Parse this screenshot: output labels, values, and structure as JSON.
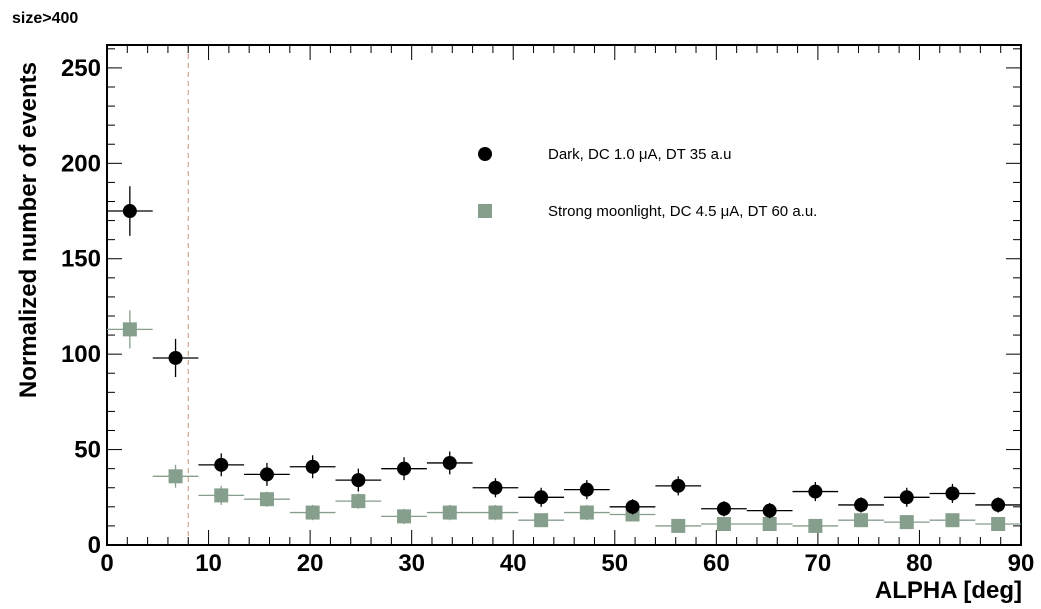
{
  "chart_data": {
    "type": "scatter",
    "title": "size>400",
    "xlabel": "ALPHA [deg]",
    "ylabel": "Normalized number of events",
    "xlim": [
      0,
      90
    ],
    "ylim": [
      0,
      262
    ],
    "x_ticks": [
      "0",
      "10",
      "20",
      "30",
      "40",
      "50",
      "60",
      "70",
      "80",
      "90"
    ],
    "y_ticks": [
      "0",
      "50",
      "100",
      "150",
      "200",
      "250"
    ],
    "cut_line_x": 8,
    "cut_line_color": "#c8947a",
    "grid": false,
    "legend_placement": "top-right",
    "series": [
      {
        "name": "Dark, DC 1.0 μA, DT 35 a.u",
        "marker": "circle",
        "color": "#000000",
        "x": [
          2.25,
          6.75,
          11.25,
          15.75,
          20.25,
          24.75,
          29.25,
          33.75,
          38.25,
          42.75,
          47.25,
          51.75,
          56.25,
          60.75,
          65.25,
          69.75,
          74.25,
          78.75,
          83.25,
          87.75
        ],
        "y": [
          175,
          98,
          42,
          37,
          41,
          34,
          40,
          43,
          30,
          25,
          29,
          20,
          31,
          19,
          18,
          28,
          21,
          25,
          27,
          21
        ],
        "yerr": [
          13,
          10,
          6,
          6,
          6,
          6,
          6,
          6,
          5,
          5,
          5,
          4,
          5,
          4,
          4,
          5,
          4,
          5,
          5,
          4
        ]
      },
      {
        "name": "Strong moonlight, DC 4.5 μA, DT 60 a.u.",
        "marker": "square",
        "color": "#869e8c",
        "x": [
          2.25,
          6.75,
          11.25,
          15.75,
          20.25,
          24.75,
          29.25,
          33.75,
          38.25,
          42.75,
          47.25,
          51.75,
          56.25,
          60.75,
          65.25,
          69.75,
          74.25,
          78.75,
          83.25,
          87.75
        ],
        "y": [
          113,
          36,
          26,
          24,
          17,
          23,
          15,
          17,
          17,
          13,
          17,
          16,
          10,
          11,
          11,
          10,
          13,
          12,
          13,
          11
        ],
        "yerr": [
          10,
          6,
          5,
          4,
          4,
          4,
          4,
          4,
          4,
          3,
          4,
          3,
          3,
          3,
          3,
          3,
          3,
          3,
          3,
          3
        ]
      }
    ]
  }
}
